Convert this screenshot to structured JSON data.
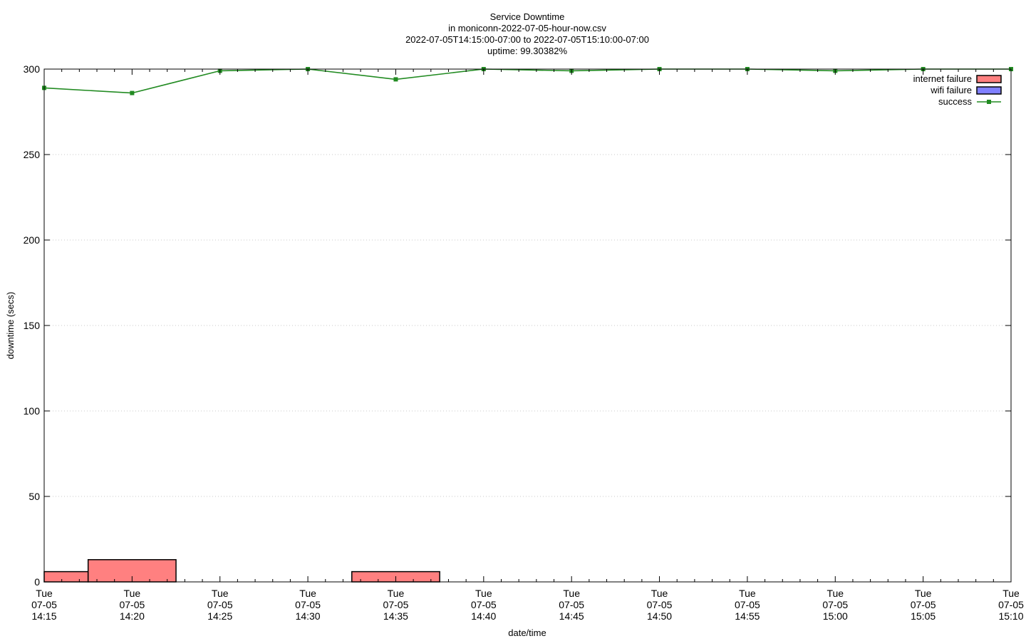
{
  "chart_data": {
    "type": "bar",
    "title_lines": [
      "Service Downtime",
      "in moniconn-2022-07-05-hour-now.csv",
      "2022-07-05T14:15:00-07:00 to 2022-07-05T15:10:00-07:00",
      "uptime: 99.30382%"
    ],
    "xlabel": "date/time",
    "ylabel": "downtime (secs)",
    "ylim": [
      0,
      300
    ],
    "y_ticks": [
      0,
      50,
      100,
      150,
      200,
      250,
      300
    ],
    "x_ticks": [
      {
        "day": "Tue",
        "date": "07-05",
        "time": "14:15"
      },
      {
        "day": "Tue",
        "date": "07-05",
        "time": "14:20"
      },
      {
        "day": "Tue",
        "date": "07-05",
        "time": "14:25"
      },
      {
        "day": "Tue",
        "date": "07-05",
        "time": "14:30"
      },
      {
        "day": "Tue",
        "date": "07-05",
        "time": "14:35"
      },
      {
        "day": "Tue",
        "date": "07-05",
        "time": "14:40"
      },
      {
        "day": "Tue",
        "date": "07-05",
        "time": "14:45"
      },
      {
        "day": "Tue",
        "date": "07-05",
        "time": "14:50"
      },
      {
        "day": "Tue",
        "date": "07-05",
        "time": "14:55"
      },
      {
        "day": "Tue",
        "date": "07-05",
        "time": "15:00"
      },
      {
        "day": "Tue",
        "date": "07-05",
        "time": "15:05"
      },
      {
        "day": "Tue",
        "date": "07-05",
        "time": "15:10"
      }
    ],
    "grid": "horizontal-dotted",
    "legend_position": "top-right",
    "series": [
      {
        "name": "internet failure",
        "kind": "bar",
        "color": "#ff8080",
        "bars": [
          {
            "start": "14:15:00",
            "end": "14:17:30",
            "value": 6
          },
          {
            "start": "14:17:30",
            "end": "14:22:30",
            "value": 13
          },
          {
            "start": "14:32:30",
            "end": "14:37:30",
            "value": 6
          }
        ]
      },
      {
        "name": "wifi failure",
        "kind": "bar",
        "color": "#8080ff",
        "bars": []
      },
      {
        "name": "success",
        "kind": "line",
        "color": "#228b22",
        "points": [
          {
            "x": "14:15",
            "y": 289
          },
          {
            "x": "14:20",
            "y": 286
          },
          {
            "x": "14:25",
            "y": 299
          },
          {
            "x": "14:30",
            "y": 300
          },
          {
            "x": "14:35",
            "y": 294
          },
          {
            "x": "14:40",
            "y": 300
          },
          {
            "x": "14:45",
            "y": 299
          },
          {
            "x": "14:50",
            "y": 300
          },
          {
            "x": "14:55",
            "y": 300
          },
          {
            "x": "15:00",
            "y": 299
          },
          {
            "x": "15:05",
            "y": 300
          },
          {
            "x": "15:10",
            "y": 300
          }
        ]
      }
    ]
  }
}
